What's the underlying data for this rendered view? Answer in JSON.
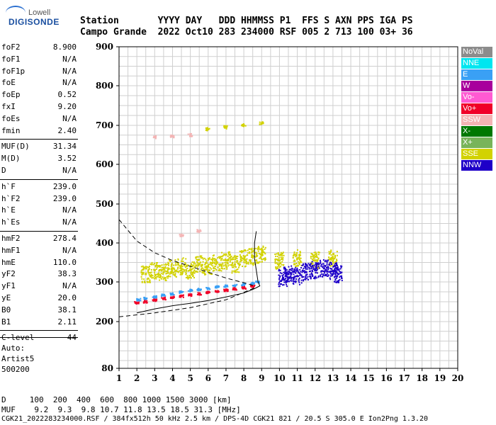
{
  "logo": {
    "line1": "Lowell",
    "line2": "DIGISONDE"
  },
  "header": {
    "row1": "Station       YYYY DAY   DDD HHMMSS P1  FFS S AXN PPS IGA PS",
    "row2": "Campo Grande  2022 Oct10 283 234000 RSF 005 2 713 100 03+ 36"
  },
  "params": [
    {
      "k": "foF2",
      "v": "8.900"
    },
    {
      "k": "foF1",
      "v": "N/A"
    },
    {
      "k": "foF1p",
      "v": "N/A"
    },
    {
      "k": "foE",
      "v": "N/A"
    },
    {
      "k": "foEp",
      "v": "0.52"
    },
    {
      "k": "fxI",
      "v": "9.20"
    },
    {
      "k": "foEs",
      "v": "N/A"
    },
    {
      "k": "fmin",
      "v": "2.40"
    },
    {
      "k": "MUF(D)",
      "v": "31.34"
    },
    {
      "k": "M(D)",
      "v": "3.52"
    },
    {
      "k": "D",
      "v": "N/A"
    },
    {
      "k": "h`F",
      "v": "239.0"
    },
    {
      "k": "h`F2",
      "v": "239.0"
    },
    {
      "k": "h`E",
      "v": "N/A"
    },
    {
      "k": "h`Es",
      "v": "N/A"
    },
    {
      "k": "hmF2",
      "v": "278.4"
    },
    {
      "k": "hmF1",
      "v": "N/A"
    },
    {
      "k": "hmE",
      "v": "110.0"
    },
    {
      "k": "yF2",
      "v": "38.3"
    },
    {
      "k": "yF1",
      "v": "N/A"
    },
    {
      "k": "yE",
      "v": "20.0"
    },
    {
      "k": "B0",
      "v": "38.1"
    },
    {
      "k": "B1",
      "v": "2.11"
    },
    {
      "k": "C-level",
      "v": "44"
    }
  ],
  "auto": {
    "line1": "Auto:",
    "line2": "Artist5",
    "line3": "500200"
  },
  "legend": [
    {
      "label": "NoVal",
      "bg": "#8c8c8c",
      "fg": "#ffffff"
    },
    {
      "label": "NNE",
      "bg": "#00e6f0",
      "fg": "#ffffff"
    },
    {
      "label": "E",
      "bg": "#3aa0f5",
      "fg": "#ffffff"
    },
    {
      "label": "W",
      "bg": "#a8009c",
      "fg": "#ffffff"
    },
    {
      "label": "Vo-",
      "bg": "#ff5ad2",
      "fg": "#ffffff"
    },
    {
      "label": "Vo+",
      "bg": "#f00028",
      "fg": "#ffffff"
    },
    {
      "label": "SSW",
      "bg": "#f4b4b4",
      "fg": "#ffffff"
    },
    {
      "label": "X-",
      "bg": "#007800",
      "fg": "#ffffff"
    },
    {
      "label": "X+",
      "bg": "#78b45a",
      "fg": "#ffffff"
    },
    {
      "label": "SSE",
      "bg": "#d2d200",
      "fg": "#ffffff"
    },
    {
      "label": "NNW",
      "bg": "#1e00c8",
      "fg": "#ffffff"
    }
  ],
  "footer": {
    "row1": "D     100  200  400  600  800 1000 1500 3000 [km]",
    "row2": "MUF    9.2  9.3  9.8 10.7 11.8 13.5 18.5 31.3 [MHz]",
    "row3": "CGK21_2022283234000.RSF / 384fx512h 50 kHz 2.5 km / DPS-4D CGK21 821 / 20.5 S 305.0 E Ion2Png 1.3.20"
  },
  "chart_data": {
    "type": "scatter",
    "title": "",
    "xlabel": "",
    "ylabel": "",
    "xlim": [
      1,
      20
    ],
    "ylim": [
      80,
      900
    ],
    "x_ticks": [
      1,
      2,
      3,
      4,
      5,
      6,
      7,
      8,
      9,
      10,
      11,
      12,
      13,
      14,
      15,
      16,
      17,
      18,
      19,
      20
    ],
    "y_ticks": [
      80,
      200,
      300,
      400,
      500,
      600,
      700,
      800,
      900
    ],
    "grid": true,
    "series": [
      {
        "name": "E trace",
        "color": "#3aa0f5",
        "points": [
          [
            2.1,
            255
          ],
          [
            2.5,
            258
          ],
          [
            3,
            262
          ],
          [
            3.5,
            266
          ],
          [
            4,
            270
          ],
          [
            4.5,
            274
          ],
          [
            5,
            278
          ],
          [
            5.5,
            281
          ],
          [
            6,
            284
          ],
          [
            6.5,
            287
          ],
          [
            7,
            289
          ],
          [
            7.5,
            291
          ],
          [
            8,
            293
          ],
          [
            8.5,
            296
          ],
          [
            8.8,
            300
          ]
        ]
      },
      {
        "name": "Vo+ trace",
        "color": "#f00028",
        "points": [
          [
            2,
            247
          ],
          [
            2.5,
            250
          ],
          [
            3,
            254
          ],
          [
            3.5,
            258
          ],
          [
            4,
            261
          ],
          [
            4.5,
            264
          ],
          [
            5,
            267
          ],
          [
            5.5,
            270
          ],
          [
            6,
            273
          ],
          [
            6.5,
            276
          ],
          [
            7,
            279
          ],
          [
            7.5,
            282
          ],
          [
            8,
            285
          ],
          [
            8.5,
            289
          ]
        ]
      },
      {
        "name": "SSE cloud",
        "color": "#d2d200",
        "points": [
          [
            2.5,
            320
          ],
          [
            3,
            330
          ],
          [
            3.5,
            325
          ],
          [
            4,
            335
          ],
          [
            4.5,
            340
          ],
          [
            5,
            330
          ],
          [
            5.5,
            345
          ],
          [
            6,
            340
          ],
          [
            6.5,
            350
          ],
          [
            7,
            355
          ],
          [
            7.5,
            345
          ],
          [
            8,
            360
          ],
          [
            8.5,
            365
          ],
          [
            9,
            370
          ],
          [
            10,
            355
          ],
          [
            11,
            360
          ],
          [
            12,
            355
          ],
          [
            13,
            360
          ]
        ]
      },
      {
        "name": "NNW cloud",
        "color": "#1e00c8",
        "points": [
          [
            10.2,
            310
          ],
          [
            10.5,
            320
          ],
          [
            11,
            315
          ],
          [
            11.5,
            325
          ],
          [
            12,
            330
          ],
          [
            12.5,
            335
          ],
          [
            13,
            328
          ],
          [
            13.3,
            320
          ]
        ]
      },
      {
        "name": "SSE high",
        "color": "#d2d200",
        "points": [
          [
            6,
            690
          ],
          [
            7,
            695
          ],
          [
            8,
            700
          ],
          [
            9,
            705
          ]
        ]
      },
      {
        "name": "SSW scatter",
        "color": "#f4b4b4",
        "points": [
          [
            3,
            670
          ],
          [
            4,
            672
          ],
          [
            5,
            675
          ],
          [
            5.5,
            430
          ],
          [
            4.5,
            420
          ]
        ]
      }
    ],
    "profile_lines": [
      {
        "name": "solid",
        "style": "solid",
        "points": [
          [
            2,
            222
          ],
          [
            3,
            232
          ],
          [
            4,
            240
          ],
          [
            5,
            246
          ],
          [
            6,
            253
          ],
          [
            7,
            262
          ],
          [
            8,
            272
          ],
          [
            8.6,
            283
          ],
          [
            8.9,
            290
          ],
          [
            8.8,
            300
          ],
          [
            8.7,
            330
          ],
          [
            8.6,
            360
          ],
          [
            8.6,
            400
          ],
          [
            8.7,
            430
          ]
        ]
      },
      {
        "name": "dashed",
        "style": "dashed",
        "points": [
          [
            1,
            460
          ],
          [
            2,
            405
          ],
          [
            3,
            375
          ],
          [
            4,
            355
          ],
          [
            5,
            340
          ],
          [
            6,
            325
          ],
          [
            7,
            310
          ],
          [
            8,
            298
          ],
          [
            8.6,
            290
          ]
        ]
      },
      {
        "name": "dashed-low",
        "style": "dashed",
        "points": [
          [
            1,
            212
          ],
          [
            3,
            222
          ],
          [
            5,
            235
          ],
          [
            7,
            255
          ],
          [
            8.6,
            285
          ]
        ]
      }
    ]
  }
}
